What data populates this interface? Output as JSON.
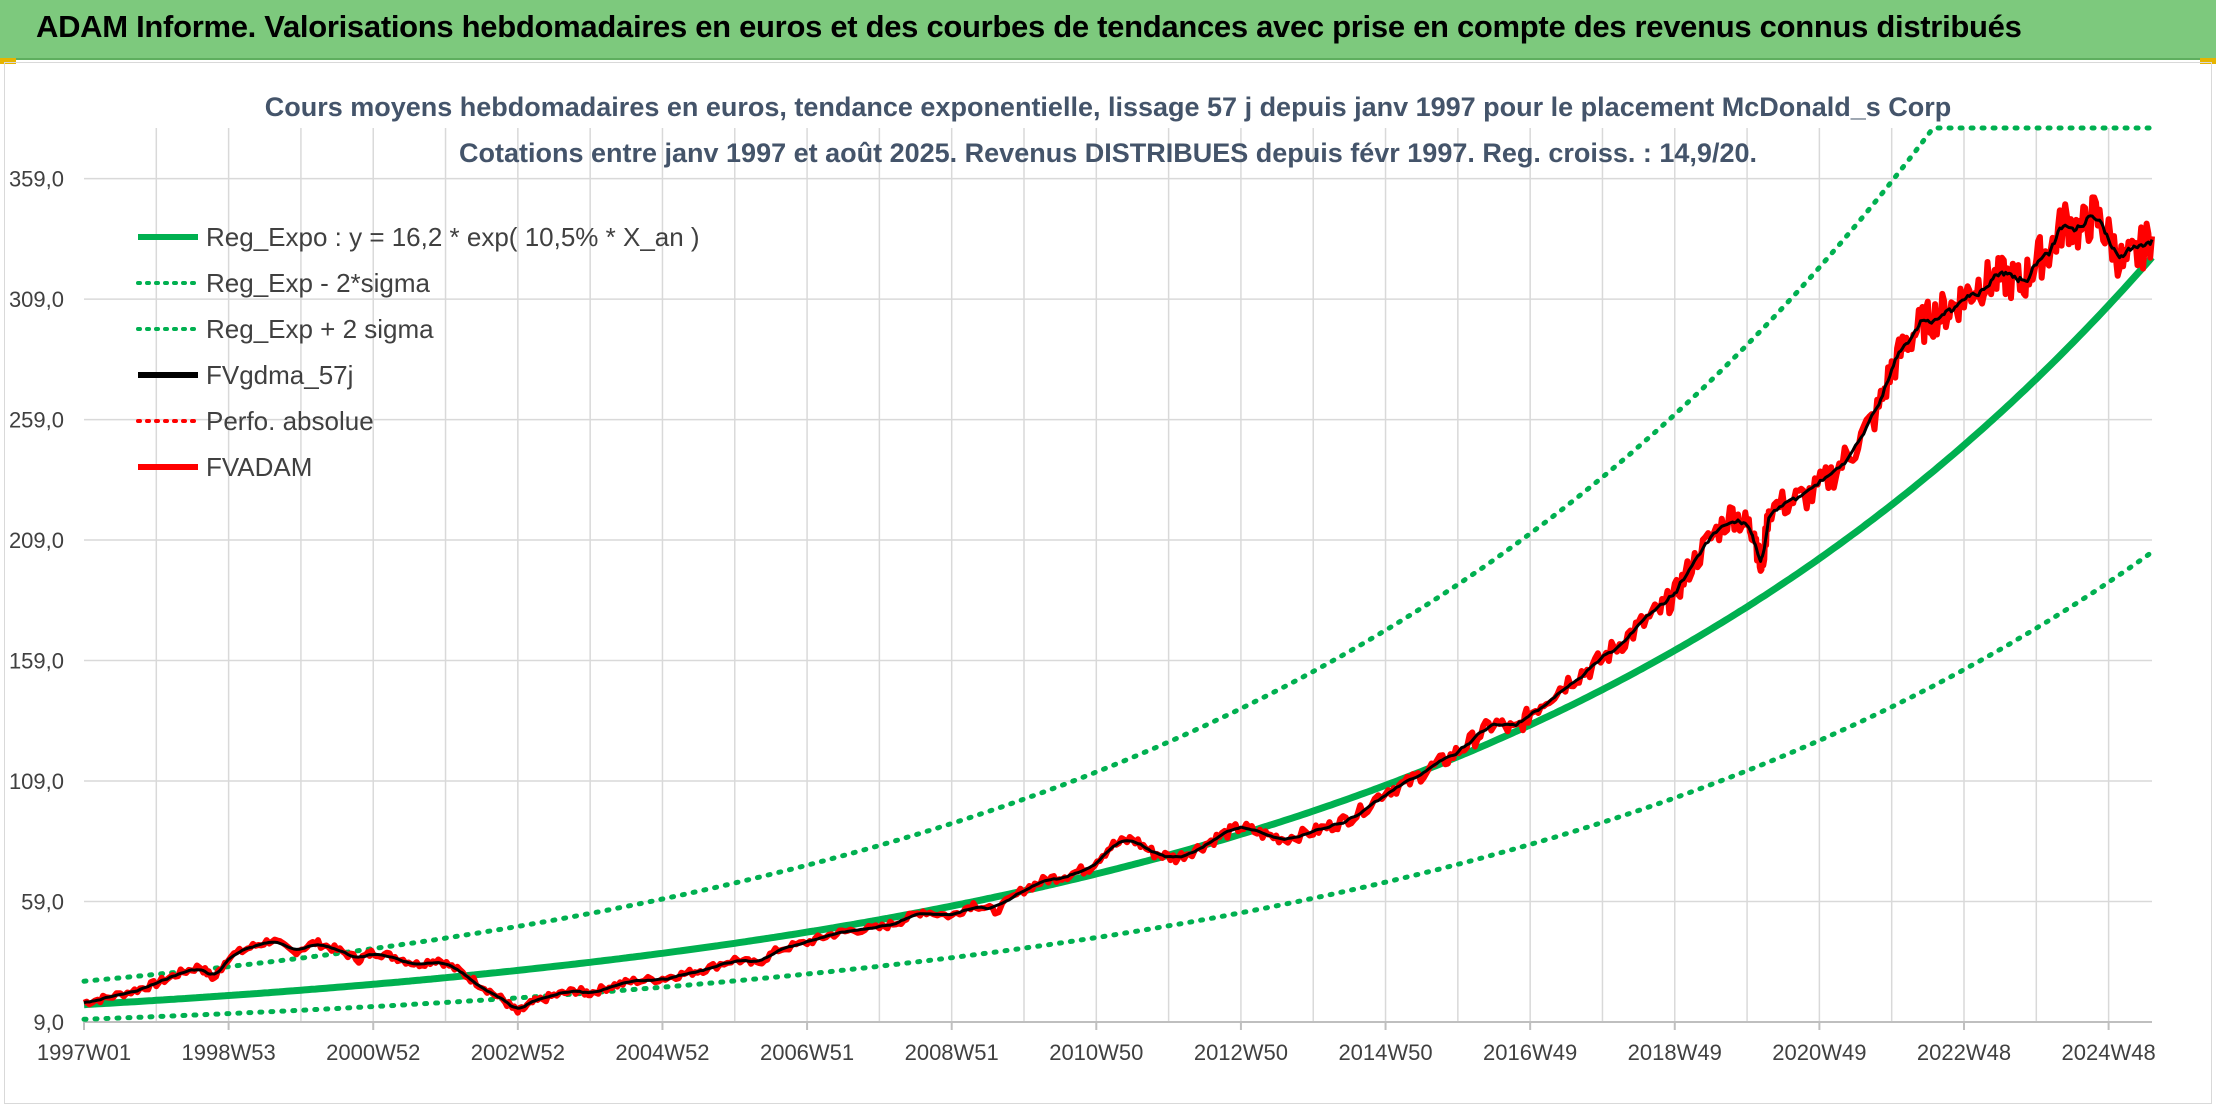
{
  "header": {
    "title": "ADAM Informe. Valorisations hebdomadaires en euros et des courbes de tendances avec prise en compte des revenus connus distribués"
  },
  "colors": {
    "header_bg": "#7dc97d",
    "reg": "#00b050",
    "price": "#ff0000",
    "smooth": "#000000",
    "grid": "#d9d9d9",
    "title_text": "#44546a"
  },
  "chart_data": {
    "type": "line",
    "title_line1": "Cours moyens hebdomadaires en euros, tendance exponentielle, lissage 57 j depuis janv 1997 pour le placement McDonald_s Corp",
    "title_line2": "Cotations entre janv 1997 et août 2025. Revenus DISTRIBUES depuis févr 1997. Reg. croiss. : 14,9/20.",
    "grid": true,
    "legend_position": "top-left",
    "ylim": [
      9,
      380
    ],
    "xlim": [
      1997.0,
      2025.6
    ],
    "y_ticks": [
      "9,0",
      "59,0",
      "109,0",
      "159,0",
      "209,0",
      "259,0",
      "309,0",
      "359,0"
    ],
    "y_tick_values": [
      9,
      59,
      109,
      159,
      209,
      259,
      309,
      359
    ],
    "x_ticks": [
      "1997W01",
      "1998W53",
      "2000W52",
      "2002W52",
      "2004W52",
      "2006W51",
      "2008W51",
      "2010W50",
      "2012W50",
      "2014W50",
      "2016W49",
      "2018W49",
      "2020W49",
      "2022W48",
      "2024W48"
    ],
    "x_tick_values": [
      1997.0,
      1999.0,
      2001.0,
      2003.0,
      2005.0,
      2007.0,
      2009.0,
      2011.0,
      2013.0,
      2015.0,
      2017.0,
      2019.0,
      2021.0,
      2023.0,
      2025.0
    ],
    "regression": {
      "a": 16.2,
      "rate": 0.105,
      "sigma_factor": 1.6
    },
    "series": [
      {
        "name": "Reg_Expo : y = 16,2 * exp( 10,5% *  X_an )",
        "kind": "reg",
        "color": "#00b050",
        "style": "solid"
      },
      {
        "name": "Reg_Exp - 2*sigma",
        "kind": "reg_low",
        "color": "#00b050",
        "style": "dotted"
      },
      {
        "name": "Reg_Exp + 2 sigma",
        "kind": "reg_high",
        "color": "#00b050",
        "style": "dotted"
      },
      {
        "name": "FVgdma_57j",
        "kind": "smooth",
        "color": "#000000",
        "style": "solid"
      },
      {
        "name": "Perfo. absolue",
        "kind": "perf",
        "color": "#ff0000",
        "style": "dotted"
      },
      {
        "name": "FVADAM",
        "kind": "price",
        "color": "#ff0000",
        "style": "solid",
        "x": [
          1997.0,
          1997.3,
          1997.7,
          1998.0,
          1998.3,
          1998.6,
          1998.8,
          1999.0,
          1999.3,
          1999.6,
          1999.9,
          2000.2,
          2000.5,
          2000.8,
          2001.0,
          2001.3,
          2001.6,
          2001.9,
          2002.2,
          2002.5,
          2002.8,
          2003.0,
          2003.2,
          2003.5,
          2003.8,
          2004.0,
          2004.3,
          2004.6,
          2005.0,
          2005.3,
          2005.6,
          2006.0,
          2006.3,
          2006.6,
          2007.0,
          2007.3,
          2007.6,
          2008.0,
          2008.3,
          2008.6,
          2009.0,
          2009.3,
          2009.6,
          2010.0,
          2010.3,
          2010.6,
          2010.9,
          2011.2,
          2011.5,
          2011.8,
          2012.1,
          2012.4,
          2012.7,
          2013.0,
          2013.3,
          2013.6,
          2014.0,
          2014.3,
          2014.6,
          2015.0,
          2015.3,
          2015.6,
          2015.9,
          2016.2,
          2016.5,
          2016.8,
          2017.0,
          2017.3,
          2017.6,
          2017.9,
          2018.2,
          2018.5,
          2018.8,
          2019.0,
          2019.2,
          2019.5,
          2019.8,
          2020.0,
          2020.1,
          2020.2,
          2020.3,
          2020.6,
          2020.9,
          2021.2,
          2021.5,
          2021.8,
          2022.0,
          2022.2,
          2022.4,
          2022.6,
          2022.8,
          2023.0,
          2023.2,
          2023.4,
          2023.6,
          2023.8,
          2024.0,
          2024.2,
          2024.4,
          2024.6,
          2024.8,
          2025.0,
          2025.2,
          2025.4,
          2025.6
        ],
        "values": [
          17,
          19,
          22,
          25,
          29,
          32,
          27,
          36,
          40,
          43,
          38,
          42,
          39,
          35,
          38,
          36,
          33,
          35,
          30,
          24,
          18,
          13,
          17,
          20,
          22,
          21,
          24,
          26,
          27,
          29,
          31,
          35,
          33,
          39,
          42,
          45,
          47,
          48,
          51,
          55,
          53,
          58,
          55,
          64,
          68,
          70,
          73,
          82,
          85,
          79,
          77,
          81,
          86,
          90,
          87,
          85,
          88,
          91,
          95,
          105,
          108,
          114,
          119,
          126,
          133,
          130,
          137,
          145,
          152,
          157,
          165,
          173,
          180,
          186,
          197,
          210,
          220,
          215,
          213,
          195,
          222,
          225,
          228,
          237,
          248,
          262,
          280,
          291,
          298,
          302,
          305,
          310,
          315,
          317,
          318,
          315,
          325,
          330,
          342,
          337,
          344,
          335,
          323,
          328,
          335
        ]
      }
    ]
  }
}
